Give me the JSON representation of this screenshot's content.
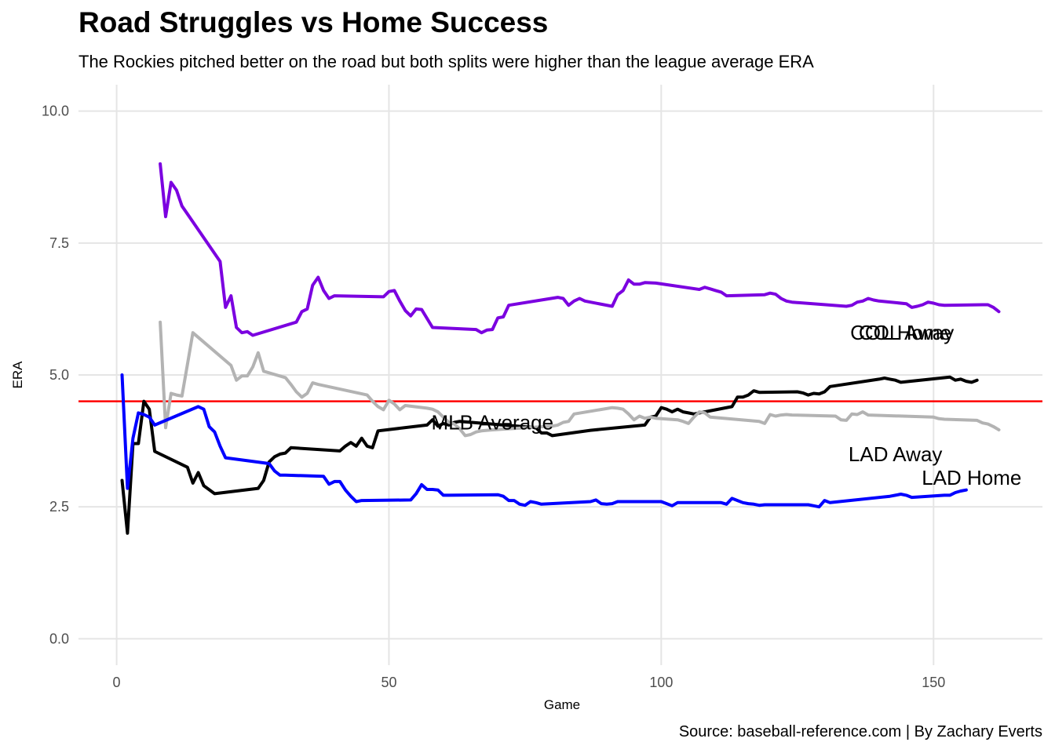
{
  "chart_data": {
    "type": "line",
    "title": "Road Struggles vs Home Success",
    "subtitle": "The Rockies pitched better on the road but both splits were higher than the league average ERA",
    "caption": "Source: baseball-reference.com | By Zachary Everts",
    "xlabel": "Game",
    "ylabel": "ERA",
    "xlim": [
      -7,
      170
    ],
    "ylim": [
      -0.5,
      10.5
    ],
    "x_ticks": [
      0,
      50,
      100,
      150
    ],
    "y_ticks": [
      0.0,
      2.5,
      5.0,
      7.5,
      10.0
    ],
    "y_tick_labels": [
      "0.0",
      "2.5",
      "5.0",
      "7.5",
      "10.0"
    ],
    "grid": true,
    "legend": "none",
    "reference_line": {
      "label": "MLB Average",
      "value": 4.5,
      "color": "#ff0000",
      "label_x": 69,
      "label_y": 4.1
    },
    "series": [
      {
        "name": "COL Home",
        "color": "#7b00e0",
        "label_x": 144,
        "label_y": 5.8,
        "x": [
          8,
          9,
          10,
          11,
          12,
          13,
          19,
          20,
          21,
          22,
          23,
          24,
          25,
          33,
          34,
          35,
          36,
          37,
          38,
          39,
          40,
          49,
          50,
          51,
          52,
          53,
          54,
          55,
          56,
          58,
          66,
          67,
          68,
          69,
          70,
          71,
          72,
          81,
          82,
          83,
          84,
          85,
          86,
          91,
          92,
          93,
          94,
          95,
          96,
          97,
          99,
          107,
          108,
          109,
          110,
          111,
          112,
          119,
          120,
          121,
          122,
          123,
          124,
          134,
          135,
          136,
          137,
          138,
          139,
          140,
          145,
          146,
          147,
          148,
          149,
          150,
          151,
          152,
          159,
          160,
          161,
          162
        ],
        "values": [
          9.0,
          8.0,
          8.65,
          8.5,
          8.2,
          8.05,
          7.15,
          6.28,
          6.5,
          5.9,
          5.8,
          5.82,
          5.75,
          6.0,
          6.2,
          6.25,
          6.7,
          6.85,
          6.6,
          6.45,
          6.5,
          6.48,
          6.58,
          6.6,
          6.4,
          6.22,
          6.12,
          6.25,
          6.24,
          5.9,
          5.86,
          5.8,
          5.85,
          5.86,
          6.08,
          6.1,
          6.32,
          6.47,
          6.45,
          6.32,
          6.4,
          6.45,
          6.4,
          6.3,
          6.52,
          6.6,
          6.8,
          6.72,
          6.72,
          6.75,
          6.74,
          6.62,
          6.66,
          6.63,
          6.6,
          6.57,
          6.5,
          6.52,
          6.55,
          6.53,
          6.45,
          6.4,
          6.38,
          6.3,
          6.32,
          6.38,
          6.4,
          6.45,
          6.42,
          6.4,
          6.35,
          6.28,
          6.3,
          6.33,
          6.38,
          6.36,
          6.33,
          6.32,
          6.33,
          6.33,
          6.28,
          6.2
        ]
      },
      {
        "name": "COL Away",
        "color": "#000000",
        "label_x": 145,
        "label_y": 5.8,
        "x": [
          1,
          2,
          3,
          4,
          5,
          6,
          7,
          13,
          14,
          15,
          16,
          18,
          26,
          27,
          28,
          29,
          30,
          31,
          32,
          41,
          42,
          43,
          44,
          45,
          46,
          47,
          48,
          57,
          58,
          59,
          60,
          61,
          62,
          63,
          77,
          78,
          79,
          80,
          87,
          97,
          98,
          99,
          100,
          101,
          102,
          103,
          104,
          105,
          106,
          113,
          114,
          115,
          116,
          117,
          118,
          125,
          126,
          127,
          128,
          129,
          130,
          131,
          140,
          141,
          142,
          143,
          144,
          153,
          154,
          155,
          156,
          157,
          158
        ],
        "values": [
          3.0,
          2.0,
          3.7,
          3.7,
          4.5,
          4.35,
          3.55,
          3.25,
          2.95,
          3.15,
          2.9,
          2.75,
          2.85,
          3.0,
          3.35,
          3.45,
          3.5,
          3.52,
          3.62,
          3.56,
          3.65,
          3.72,
          3.65,
          3.8,
          3.65,
          3.62,
          3.94,
          4.05,
          4.15,
          4.03,
          4.08,
          4.05,
          4.1,
          4.12,
          4.0,
          3.9,
          3.9,
          3.85,
          3.95,
          4.05,
          4.2,
          4.22,
          4.38,
          4.35,
          4.3,
          4.35,
          4.3,
          4.28,
          4.26,
          4.4,
          4.58,
          4.58,
          4.62,
          4.7,
          4.67,
          4.68,
          4.66,
          4.62,
          4.65,
          4.64,
          4.68,
          4.78,
          4.92,
          4.94,
          4.92,
          4.9,
          4.86,
          4.96,
          4.9,
          4.92,
          4.88,
          4.86,
          4.9
        ]
      },
      {
        "name": "LAD Away",
        "color": "#b3b3b3",
        "label_x": 143,
        "label_y": 3.5,
        "x": [
          8,
          9,
          10,
          11,
          12,
          13,
          14,
          21,
          22,
          23,
          24,
          25,
          26,
          27,
          31,
          32,
          33,
          34,
          35,
          36,
          37,
          46,
          47,
          48,
          49,
          50,
          51,
          52,
          53,
          57,
          58,
          59,
          60,
          61,
          62,
          63,
          64,
          65,
          66,
          67,
          68,
          69,
          80,
          81,
          82,
          83,
          84,
          91,
          92,
          93,
          94,
          95,
          96,
          97,
          98,
          99,
          103,
          104,
          105,
          106,
          107,
          108,
          109,
          118,
          119,
          120,
          121,
          122,
          123,
          124,
          132,
          133,
          134,
          135,
          136,
          137,
          138,
          150,
          151,
          152,
          158,
          159,
          160,
          161,
          162
        ],
        "values": [
          6.0,
          4.0,
          4.65,
          4.62,
          4.6,
          5.2,
          5.8,
          5.18,
          4.9,
          4.98,
          4.98,
          5.15,
          5.42,
          5.07,
          4.95,
          4.82,
          4.68,
          4.58,
          4.65,
          4.85,
          4.82,
          4.62,
          4.5,
          4.4,
          4.34,
          4.52,
          4.45,
          4.34,
          4.42,
          4.37,
          4.35,
          4.3,
          4.2,
          4.1,
          4.07,
          3.98,
          3.85,
          3.87,
          3.92,
          3.94,
          3.95,
          3.96,
          4.03,
          4.05,
          4.1,
          4.12,
          4.26,
          4.38,
          4.37,
          4.35,
          4.26,
          4.15,
          4.22,
          4.18,
          4.2,
          4.18,
          4.15,
          4.12,
          4.08,
          4.2,
          4.3,
          4.28,
          4.2,
          4.12,
          4.08,
          4.25,
          4.22,
          4.24,
          4.25,
          4.24,
          4.22,
          4.15,
          4.14,
          4.26,
          4.25,
          4.3,
          4.24,
          4.2,
          4.17,
          4.16,
          4.14,
          4.09,
          4.07,
          4.02,
          3.96
        ]
      },
      {
        "name": "LAD Home",
        "color": "#0000ff",
        "label_x": 157,
        "label_y": 3.05,
        "x": [
          1,
          2,
          3,
          4,
          5,
          6,
          7,
          15,
          16,
          17,
          18,
          19,
          20,
          28,
          29,
          30,
          31,
          38,
          39,
          40,
          41,
          42,
          43,
          44,
          45,
          54,
          55,
          56,
          57,
          58,
          59,
          60,
          61,
          70,
          71,
          72,
          73,
          74,
          75,
          76,
          77,
          78,
          87,
          88,
          89,
          90,
          91,
          92,
          100,
          101,
          102,
          103,
          111,
          112,
          113,
          114,
          115,
          116,
          117,
          118,
          119,
          127,
          128,
          129,
          130,
          131,
          142,
          143,
          144,
          145,
          146,
          152,
          153,
          154,
          155,
          156
        ],
        "values": [
          5.0,
          2.85,
          3.8,
          4.28,
          4.25,
          4.2,
          4.05,
          4.4,
          4.35,
          4.02,
          3.92,
          3.65,
          3.43,
          3.32,
          3.18,
          3.1,
          3.1,
          3.08,
          2.93,
          2.98,
          2.98,
          2.82,
          2.7,
          2.6,
          2.62,
          2.63,
          2.75,
          2.92,
          2.83,
          2.83,
          2.82,
          2.72,
          2.72,
          2.73,
          2.7,
          2.62,
          2.62,
          2.55,
          2.53,
          2.6,
          2.58,
          2.55,
          2.6,
          2.63,
          2.56,
          2.55,
          2.56,
          2.6,
          2.6,
          2.56,
          2.52,
          2.58,
          2.58,
          2.55,
          2.66,
          2.62,
          2.58,
          2.56,
          2.55,
          2.53,
          2.54,
          2.54,
          2.52,
          2.5,
          2.62,
          2.58,
          2.7,
          2.72,
          2.74,
          2.72,
          2.68,
          2.72,
          2.72,
          2.77,
          2.8,
          2.82
        ]
      }
    ]
  }
}
